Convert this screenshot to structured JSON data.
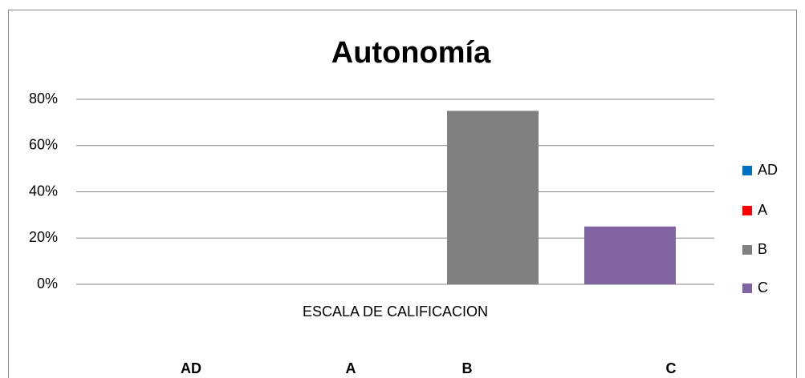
{
  "chart_data": {
    "type": "bar",
    "title": "Autonomía",
    "categories": [
      "ESCALA DE CALIFICACION"
    ],
    "series": [
      {
        "name": "AD",
        "color": "#0070c0",
        "values": [
          0
        ]
      },
      {
        "name": "A",
        "color": "#ff0000",
        "values": [
          0
        ]
      },
      {
        "name": "B",
        "color": "#808080",
        "values": [
          75
        ]
      },
      {
        "name": "C",
        "color": "#8064a2",
        "values": [
          25
        ]
      }
    ],
    "ylim": [
      0,
      80
    ],
    "yticks": [
      {
        "value": 0,
        "label": "0%"
      },
      {
        "value": 20,
        "label": "20%"
      },
      {
        "value": 40,
        "label": "40%"
      },
      {
        "value": 60,
        "label": "60%"
      },
      {
        "value": 80,
        "label": "80%"
      }
    ],
    "grid": true,
    "legend": "right"
  }
}
